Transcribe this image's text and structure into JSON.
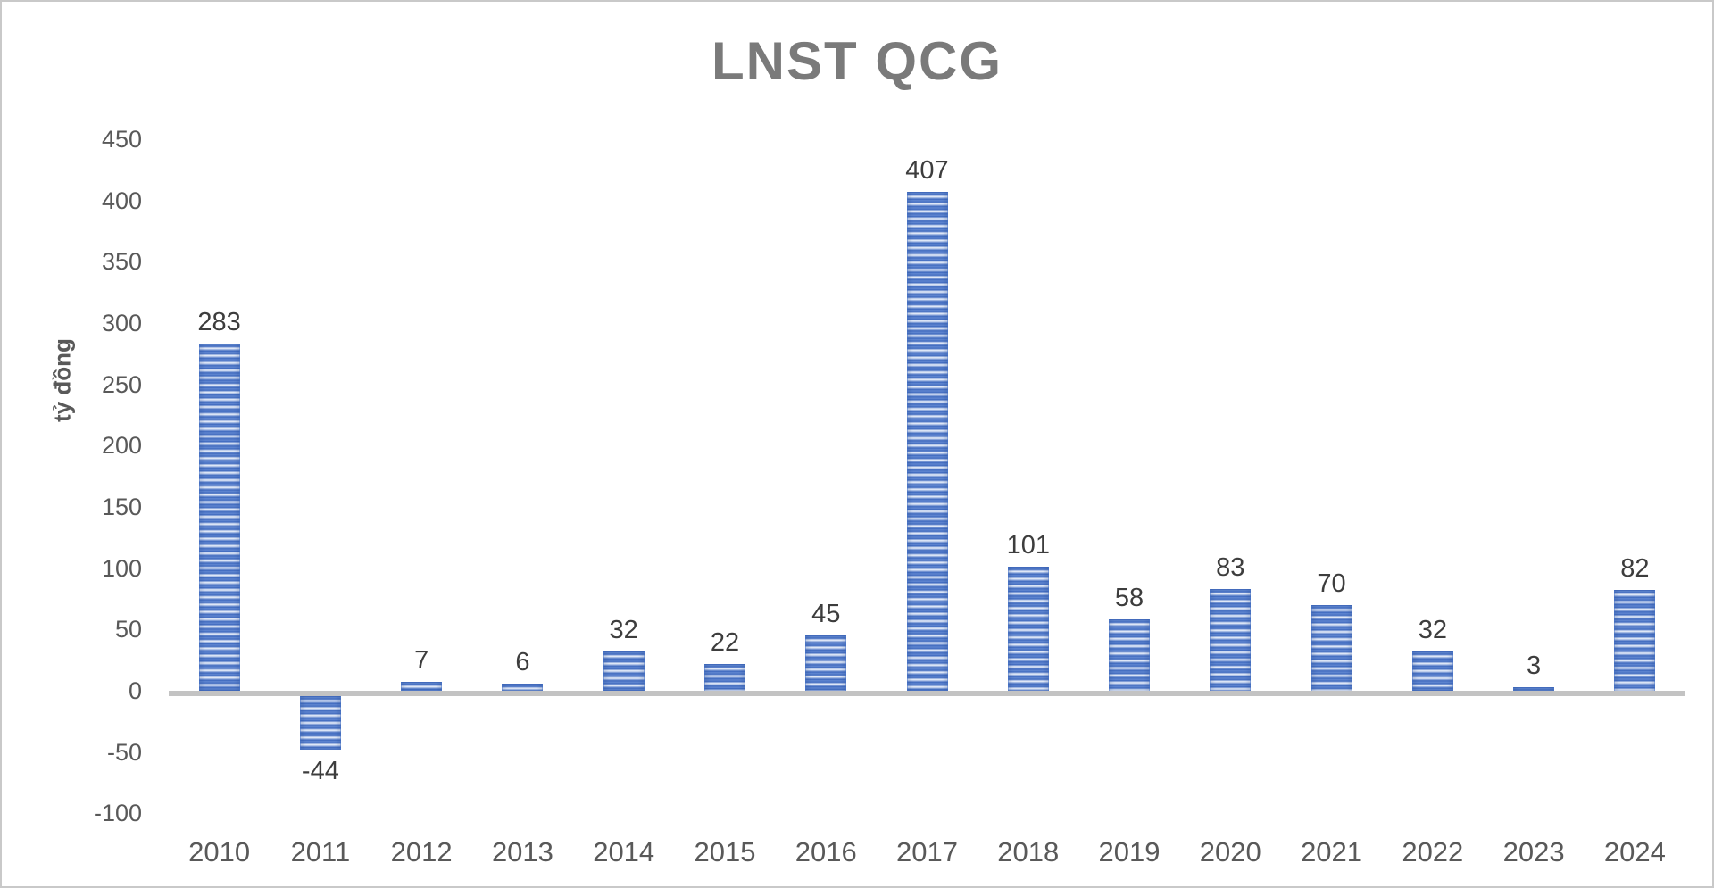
{
  "chart_data": {
    "type": "bar",
    "title": "LNST QCG",
    "ylabel": "tỷ đồng",
    "xlabel": "",
    "categories": [
      "2010",
      "2011",
      "2012",
      "2013",
      "2014",
      "2015",
      "2016",
      "2017",
      "2018",
      "2019",
      "2020",
      "2021",
      "2022",
      "2023",
      "2024"
    ],
    "values": [
      283,
      -44,
      7,
      6,
      32,
      22,
      45,
      407,
      101,
      58,
      83,
      70,
      32,
      3,
      82
    ],
    "data_labels": [
      "283",
      "-44",
      "7",
      "6",
      "32",
      "22",
      "45",
      "407",
      "101",
      "58",
      "83",
      "70",
      "32",
      "3",
      "82"
    ],
    "y_ticks": [
      450,
      400,
      350,
      300,
      250,
      200,
      150,
      100,
      50,
      0,
      -50,
      -100
    ],
    "ylim": [
      -100,
      450
    ],
    "grid": false,
    "legend": false,
    "colors": {
      "bar_dark": "#3e69be",
      "bar_light": "#eff4fc",
      "axis_line": "#c3c3c3",
      "title_text": "#7a7a7a",
      "tick_text": "#595959",
      "data_label_text": "#3d3d3d",
      "frame_border": "#c9c9c9",
      "background": "#ffffff"
    }
  }
}
